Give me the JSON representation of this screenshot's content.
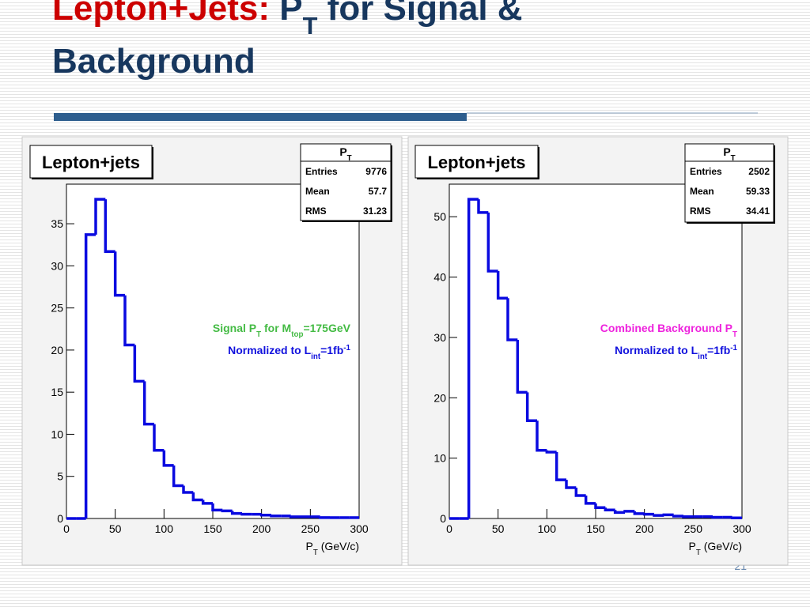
{
  "slide": {
    "title_lines": [
      [
        {
          "text": "Lepton+Jets:",
          "color": "#cc0000"
        },
        {
          "text": " P",
          "color": "#17375e"
        },
        {
          "text": "T",
          "color": "#17375e",
          "script": "sub"
        },
        {
          "text": " for Signal &",
          "color": "#17375e"
        }
      ],
      [
        {
          "text": "Background",
          "color": "#17375e"
        }
      ]
    ],
    "page_number": "21"
  },
  "chart_data": [
    {
      "type": "histogram",
      "title": "Lepton+jets",
      "stats": {
        "title": [
          {
            "text": "P"
          },
          {
            "text": "T",
            "script": "sub"
          }
        ],
        "rows": [
          {
            "label": "Entries",
            "value": 9776
          },
          {
            "label": "Mean",
            "value": 57.7
          },
          {
            "label": "RMS",
            "value": 31.23
          }
        ]
      },
      "annotations": [
        {
          "color": "#44bb44",
          "segments": [
            {
              "text": "Signal P"
            },
            {
              "text": "T",
              "script": "sub"
            },
            {
              "text": " for M"
            },
            {
              "text": "top",
              "script": "sub"
            },
            {
              "text": "=175GeV"
            }
          ]
        },
        {
          "color": "#1010dd",
          "segments": [
            {
              "text": "Normalized to L"
            },
            {
              "text": "int",
              "script": "sub"
            },
            {
              "text": "=1fb"
            },
            {
              "text": "-1",
              "script": "super"
            }
          ]
        }
      ],
      "xlabel": [
        {
          "text": "P"
        },
        {
          "text": "T",
          "script": "sub"
        },
        {
          "text": " (GeV/c)"
        }
      ],
      "color": "#0a0ae0",
      "bins": [
        0,
        10,
        20,
        30,
        40,
        50,
        60,
        70,
        80,
        90,
        100,
        110,
        120,
        130,
        140,
        150,
        160,
        170,
        180,
        190,
        200,
        210,
        220,
        230,
        240,
        250,
        260,
        270,
        280,
        290,
        300
      ],
      "values": [
        0,
        0,
        33.7,
        37.9,
        31.7,
        26.5,
        20.6,
        16.3,
        11.2,
        8.1,
        6.3,
        3.9,
        3.1,
        2.2,
        1.8,
        1.0,
        0.9,
        0.6,
        0.5,
        0.5,
        0.4,
        0.3,
        0.3,
        0.2,
        0.2,
        0.2,
        0.1,
        0.1,
        0.1,
        0.1
      ],
      "xlim": [
        0,
        300
      ],
      "ylim": [
        0,
        39.7
      ],
      "xticks": [
        0,
        50,
        100,
        150,
        200,
        250,
        300
      ],
      "yticks": [
        0,
        5,
        10,
        15,
        20,
        25,
        30,
        35
      ]
    },
    {
      "type": "histogram",
      "title": "Lepton+jets",
      "stats": {
        "title": [
          {
            "text": "P"
          },
          {
            "text": "T",
            "script": "sub"
          }
        ],
        "rows": [
          {
            "label": "Entries",
            "value": 2502
          },
          {
            "label": "Mean",
            "value": 59.33
          },
          {
            "label": "RMS",
            "value": 34.41
          }
        ]
      },
      "annotations": [
        {
          "color": "#ee22dd",
          "segments": [
            {
              "text": "Combined Background P"
            },
            {
              "text": "T",
              "script": "sub"
            }
          ]
        },
        {
          "color": "#1010dd",
          "segments": [
            {
              "text": "Normalized to L"
            },
            {
              "text": "int",
              "script": "sub"
            },
            {
              "text": "=1fb"
            },
            {
              "text": "-1",
              "script": "super"
            }
          ]
        }
      ],
      "xlabel": [
        {
          "text": "P"
        },
        {
          "text": "T",
          "script": "sub"
        },
        {
          "text": " (GeV/c)"
        }
      ],
      "color": "#0a0ae0",
      "bins": [
        0,
        10,
        20,
        30,
        40,
        50,
        60,
        70,
        80,
        90,
        100,
        110,
        120,
        130,
        140,
        150,
        160,
        170,
        180,
        190,
        200,
        210,
        220,
        230,
        240,
        250,
        260,
        270,
        280,
        290,
        300
      ],
      "values": [
        0,
        0,
        52.9,
        50.7,
        41.0,
        36.5,
        29.6,
        20.9,
        16.2,
        11.3,
        11.0,
        6.4,
        5.1,
        3.8,
        2.5,
        1.8,
        1.4,
        1.0,
        1.2,
        0.8,
        0.7,
        0.5,
        0.6,
        0.4,
        0.3,
        0.3,
        0.3,
        0.2,
        0.2,
        0.1
      ],
      "xlim": [
        0,
        300
      ],
      "ylim": [
        0,
        55.4
      ],
      "xticks": [
        0,
        50,
        100,
        150,
        200,
        250,
        300
      ],
      "yticks": [
        0,
        10,
        20,
        30,
        40,
        50
      ]
    }
  ]
}
